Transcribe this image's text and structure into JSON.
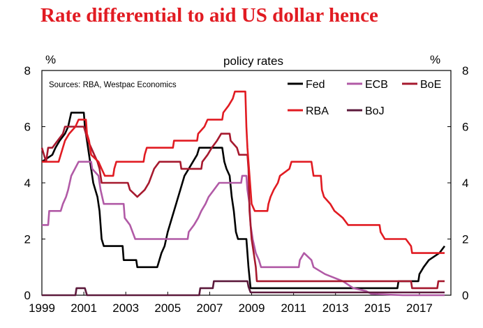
{
  "headline": "Rate differential to aid US dollar hence",
  "chart_data": {
    "type": "line",
    "title": "policy rates",
    "left_unit": "%",
    "right_unit": "%",
    "source": "Sources: RBA, Westpac Economics",
    "ylim": [
      0,
      8
    ],
    "xlim": [
      1999,
      2018.5
    ],
    "yticks": [
      "0",
      "2",
      "4",
      "6",
      "8"
    ],
    "xticks": [
      "1999",
      "2001",
      "2003",
      "2005",
      "2007",
      "2009",
      "2011",
      "2013",
      "2015",
      "2017"
    ],
    "series": [
      {
        "name": "Fed",
        "color": "#000000",
        "points": [
          [
            1999,
            4.75
          ],
          [
            1999.5,
            5.0
          ],
          [
            1999.65,
            5.25
          ],
          [
            1999.85,
            5.5
          ],
          [
            2000.1,
            5.75
          ],
          [
            2000.25,
            6.0
          ],
          [
            2000.4,
            6.5
          ],
          [
            2001.0,
            6.5
          ],
          [
            2001.05,
            6.0
          ],
          [
            2001.15,
            5.5
          ],
          [
            2001.25,
            5.0
          ],
          [
            2001.35,
            4.5
          ],
          [
            2001.45,
            4.0
          ],
          [
            2001.55,
            3.75
          ],
          [
            2001.65,
            3.5
          ],
          [
            2001.75,
            3.0
          ],
          [
            2001.8,
            2.5
          ],
          [
            2001.85,
            2.0
          ],
          [
            2001.95,
            1.75
          ],
          [
            2002.85,
            1.75
          ],
          [
            2002.9,
            1.25
          ],
          [
            2003.5,
            1.25
          ],
          [
            2003.55,
            1.0
          ],
          [
            2004.5,
            1.0
          ],
          [
            2004.6,
            1.25
          ],
          [
            2004.7,
            1.5
          ],
          [
            2004.85,
            1.75
          ],
          [
            2005.0,
            2.25
          ],
          [
            2005.2,
            2.75
          ],
          [
            2005.4,
            3.25
          ],
          [
            2005.6,
            3.75
          ],
          [
            2005.8,
            4.25
          ],
          [
            2006.0,
            4.5
          ],
          [
            2006.2,
            4.75
          ],
          [
            2006.4,
            5.0
          ],
          [
            2006.5,
            5.25
          ],
          [
            2007.6,
            5.25
          ],
          [
            2007.7,
            4.75
          ],
          [
            2007.8,
            4.5
          ],
          [
            2007.95,
            4.25
          ],
          [
            2008.05,
            3.5
          ],
          [
            2008.15,
            3.0
          ],
          [
            2008.25,
            2.25
          ],
          [
            2008.35,
            2.0
          ],
          [
            2008.75,
            2.0
          ],
          [
            2008.8,
            1.5
          ],
          [
            2008.85,
            1.0
          ],
          [
            2008.95,
            0.25
          ],
          [
            2015.95,
            0.25
          ],
          [
            2016.0,
            0.5
          ],
          [
            2016.95,
            0.5
          ],
          [
            2017.0,
            0.75
          ],
          [
            2017.2,
            1.0
          ],
          [
            2017.45,
            1.25
          ],
          [
            2017.95,
            1.5
          ],
          [
            2018.2,
            1.75
          ]
        ]
      },
      {
        "name": "ECB",
        "color": "#b15aa6",
        "points": [
          [
            1999,
            2.5
          ],
          [
            1999.3,
            2.5
          ],
          [
            1999.35,
            3.0
          ],
          [
            1999.9,
            3.0
          ],
          [
            2000.0,
            3.25
          ],
          [
            2000.15,
            3.5
          ],
          [
            2000.25,
            3.75
          ],
          [
            2000.4,
            4.25
          ],
          [
            2000.75,
            4.75
          ],
          [
            2001.35,
            4.75
          ],
          [
            2001.4,
            4.5
          ],
          [
            2001.7,
            4.25
          ],
          [
            2001.8,
            3.75
          ],
          [
            2001.95,
            3.25
          ],
          [
            2002.9,
            3.25
          ],
          [
            2002.95,
            2.75
          ],
          [
            2003.2,
            2.5
          ],
          [
            2003.45,
            2.0
          ],
          [
            2005.95,
            2.0
          ],
          [
            2006.0,
            2.25
          ],
          [
            2006.25,
            2.5
          ],
          [
            2006.45,
            2.75
          ],
          [
            2006.6,
            3.0
          ],
          [
            2006.8,
            3.25
          ],
          [
            2006.95,
            3.5
          ],
          [
            2007.2,
            3.75
          ],
          [
            2007.45,
            4.0
          ],
          [
            2008.5,
            4.0
          ],
          [
            2008.55,
            4.25
          ],
          [
            2008.75,
            4.25
          ],
          [
            2008.8,
            3.75
          ],
          [
            2008.9,
            3.25
          ],
          [
            2008.95,
            2.5
          ],
          [
            2009.05,
            2.0
          ],
          [
            2009.2,
            1.5
          ],
          [
            2009.35,
            1.25
          ],
          [
            2009.45,
            1.0
          ],
          [
            2011.25,
            1.0
          ],
          [
            2011.3,
            1.25
          ],
          [
            2011.5,
            1.5
          ],
          [
            2011.85,
            1.25
          ],
          [
            2011.95,
            1.0
          ],
          [
            2012.5,
            0.75
          ],
          [
            2013.35,
            0.5
          ],
          [
            2013.85,
            0.25
          ],
          [
            2014.45,
            0.15
          ],
          [
            2014.7,
            0.05
          ],
          [
            2016.2,
            0.0
          ],
          [
            2018.2,
            0.0
          ]
        ]
      },
      {
        "name": "BoE",
        "color": "#a6192e",
        "points": [
          [
            1999,
            5.25
          ],
          [
            1999.1,
            5.0
          ],
          [
            1999.2,
            4.75
          ],
          [
            1999.3,
            5.25
          ],
          [
            1999.5,
            5.25
          ],
          [
            1999.75,
            5.5
          ],
          [
            2000.0,
            5.75
          ],
          [
            2000.1,
            6.0
          ],
          [
            2001.0,
            6.0
          ],
          [
            2001.1,
            5.75
          ],
          [
            2001.2,
            5.5
          ],
          [
            2001.35,
            5.25
          ],
          [
            2001.5,
            5.0
          ],
          [
            2001.65,
            4.75
          ],
          [
            2001.75,
            4.5
          ],
          [
            2001.85,
            4.0
          ],
          [
            2003.1,
            4.0
          ],
          [
            2003.2,
            3.75
          ],
          [
            2003.55,
            3.5
          ],
          [
            2003.9,
            3.75
          ],
          [
            2004.1,
            4.0
          ],
          [
            2004.35,
            4.5
          ],
          [
            2004.6,
            4.75
          ],
          [
            2005.6,
            4.75
          ],
          [
            2005.65,
            4.5
          ],
          [
            2006.6,
            4.5
          ],
          [
            2006.65,
            4.75
          ],
          [
            2006.9,
            5.0
          ],
          [
            2007.1,
            5.25
          ],
          [
            2007.35,
            5.5
          ],
          [
            2007.55,
            5.75
          ],
          [
            2007.95,
            5.75
          ],
          [
            2008.0,
            5.5
          ],
          [
            2008.3,
            5.25
          ],
          [
            2008.4,
            5.0
          ],
          [
            2008.8,
            5.0
          ],
          [
            2008.85,
            4.5
          ],
          [
            2008.9,
            3.0
          ],
          [
            2009.0,
            2.0
          ],
          [
            2009.1,
            1.5
          ],
          [
            2009.2,
            1.0
          ],
          [
            2009.25,
            0.5
          ],
          [
            2016.6,
            0.5
          ],
          [
            2016.65,
            0.25
          ],
          [
            2017.85,
            0.25
          ],
          [
            2017.9,
            0.5
          ],
          [
            2018.2,
            0.5
          ]
        ]
      },
      {
        "name": "RBA",
        "color": "#e11b22",
        "points": [
          [
            1999,
            4.75
          ],
          [
            1999.8,
            4.75
          ],
          [
            1999.9,
            5.0
          ],
          [
            2000.1,
            5.5
          ],
          [
            2000.3,
            5.75
          ],
          [
            2000.6,
            6.0
          ],
          [
            2000.75,
            6.25
          ],
          [
            2001.1,
            6.25
          ],
          [
            2001.15,
            5.75
          ],
          [
            2001.25,
            5.5
          ],
          [
            2001.35,
            5.0
          ],
          [
            2001.7,
            4.75
          ],
          [
            2001.85,
            4.5
          ],
          [
            2002.0,
            4.25
          ],
          [
            2002.4,
            4.25
          ],
          [
            2002.45,
            4.5
          ],
          [
            2002.55,
            4.75
          ],
          [
            2003.85,
            4.75
          ],
          [
            2003.9,
            5.0
          ],
          [
            2004.0,
            5.25
          ],
          [
            2005.25,
            5.25
          ],
          [
            2005.3,
            5.5
          ],
          [
            2006.4,
            5.5
          ],
          [
            2006.45,
            5.75
          ],
          [
            2006.75,
            6.0
          ],
          [
            2006.9,
            6.25
          ],
          [
            2007.6,
            6.25
          ],
          [
            2007.65,
            6.5
          ],
          [
            2007.9,
            6.75
          ],
          [
            2008.1,
            7.0
          ],
          [
            2008.2,
            7.25
          ],
          [
            2008.7,
            7.25
          ],
          [
            2008.75,
            6.0
          ],
          [
            2008.8,
            5.25
          ],
          [
            2008.9,
            4.25
          ],
          [
            2009.0,
            3.25
          ],
          [
            2009.15,
            3.0
          ],
          [
            2009.75,
            3.0
          ],
          [
            2009.8,
            3.25
          ],
          [
            2009.9,
            3.5
          ],
          [
            2010.05,
            3.75
          ],
          [
            2010.25,
            4.0
          ],
          [
            2010.35,
            4.25
          ],
          [
            2010.8,
            4.5
          ],
          [
            2010.9,
            4.75
          ],
          [
            2011.85,
            4.75
          ],
          [
            2011.9,
            4.5
          ],
          [
            2011.95,
            4.25
          ],
          [
            2012.3,
            4.25
          ],
          [
            2012.35,
            3.75
          ],
          [
            2012.45,
            3.5
          ],
          [
            2012.75,
            3.25
          ],
          [
            2012.95,
            3.0
          ],
          [
            2013.35,
            2.75
          ],
          [
            2013.6,
            2.5
          ],
          [
            2015.1,
            2.5
          ],
          [
            2015.15,
            2.25
          ],
          [
            2015.35,
            2.0
          ],
          [
            2016.35,
            2.0
          ],
          [
            2016.6,
            1.75
          ],
          [
            2016.65,
            1.5
          ],
          [
            2018.2,
            1.5
          ]
        ]
      },
      {
        "name": "BoJ",
        "color": "#5c1a3c",
        "points": [
          [
            1999,
            0.0
          ],
          [
            2000.6,
            0.0
          ],
          [
            2000.65,
            0.25
          ],
          [
            2001.05,
            0.25
          ],
          [
            2001.15,
            0.0
          ],
          [
            2006.5,
            0.0
          ],
          [
            2006.55,
            0.25
          ],
          [
            2007.15,
            0.25
          ],
          [
            2007.2,
            0.5
          ],
          [
            2008.8,
            0.5
          ],
          [
            2008.85,
            0.3
          ],
          [
            2008.95,
            0.1
          ],
          [
            2018.2,
            0.1
          ]
        ]
      }
    ]
  }
}
